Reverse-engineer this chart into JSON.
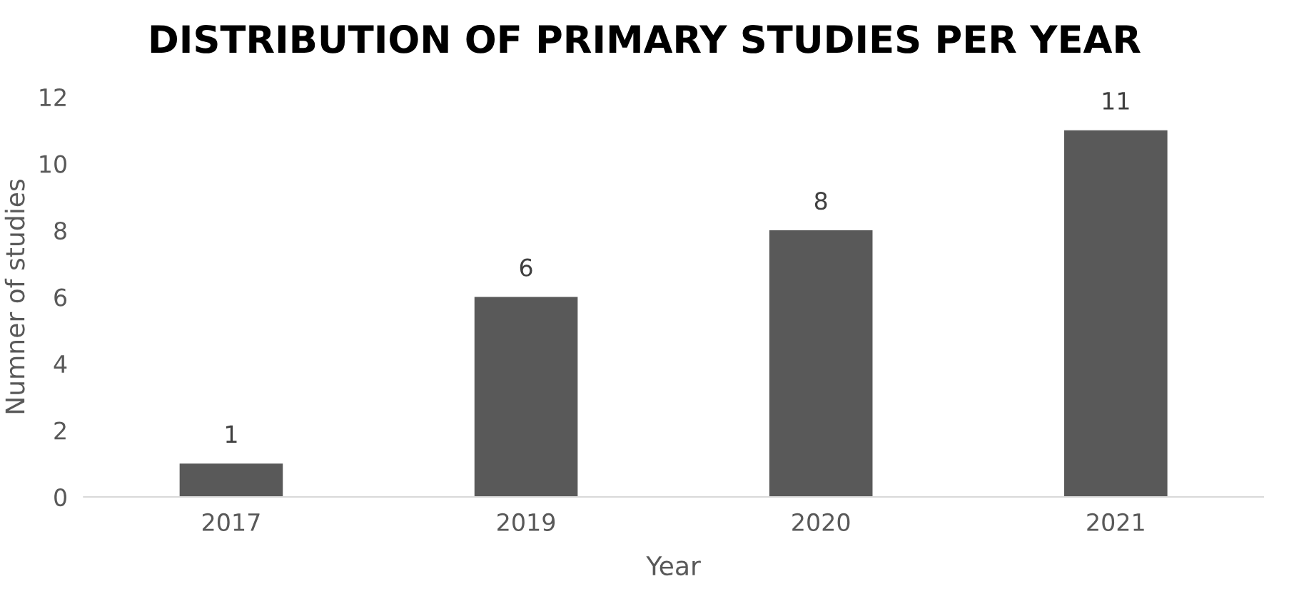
{
  "chart_data": {
    "type": "bar",
    "title": "DISTRIBUTION OF PRIMARY STUDIES PER YEAR",
    "xlabel": "Year",
    "ylabel": "Numner of studies",
    "categories": [
      "2017",
      "2019",
      "2020",
      "2021"
    ],
    "values": [
      1,
      6,
      8,
      11
    ],
    "color": "#595959",
    "ylim": [
      0,
      12
    ],
    "yticks": [
      0,
      2,
      4,
      6,
      8,
      10,
      12
    ],
    "data_labels": true,
    "grid": false,
    "legend": false
  }
}
